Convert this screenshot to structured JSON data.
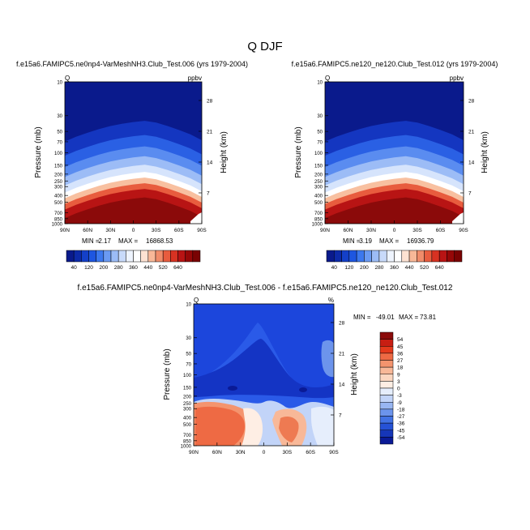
{
  "page_title": "Q DJF",
  "colors": {
    "deep_blue": "#0a1a96",
    "blue": "#1e50e6",
    "light_blue": "#9ab8f0",
    "white": "#ffffff",
    "peach": "#f6c7a8",
    "orange": "#ee7a52",
    "dark_red": "#8b0a0a"
  },
  "chart_data": [
    {
      "type": "heatmap",
      "title": "f.e15a6.FAMIPC5.ne0np4-VarMeshNH3.Club_Test.006 (yrs 1979-2004)",
      "variable_label": "Q",
      "units_label": "ppbv",
      "xlabel": "",
      "ylabel": "Pressure (mb)",
      "y2label": "Height (km)",
      "x_ticks": [
        "90N",
        "60N",
        "30N",
        "0",
        "30S",
        "60S",
        "90S"
      ],
      "y_ticks": [
        "10",
        "30",
        "50",
        "70",
        "100",
        "150",
        "200",
        "250",
        "300",
        "400",
        "500",
        "700",
        "850",
        "1000"
      ],
      "y2_ticks": [
        "28",
        "21",
        "14",
        "7"
      ],
      "ylim": [
        10,
        1000
      ],
      "y_scale": "log",
      "stats": {
        "min_label": "MIN =",
        "min": "2.17",
        "max_label": "MAX =",
        "max": "16868.53"
      },
      "colorbar_levels": [
        "40",
        "120",
        "200",
        "280",
        "360",
        "440",
        "520",
        "640"
      ],
      "colorbar_colors": [
        "#0a1a8c",
        "#0d2aa8",
        "#1440c8",
        "#1e56e0",
        "#3c78ee",
        "#6a9af2",
        "#9cbcf6",
        "#c8dafa",
        "#eef4fe",
        "#ffffff",
        "#fde2d2",
        "#f8b898",
        "#f08c6a",
        "#e85c3e",
        "#d83222",
        "#b81414",
        "#960808",
        "#7a0303"
      ],
      "boundary_lat": [
        90,
        75,
        60,
        45,
        30,
        15,
        0,
        -15,
        -30,
        -45,
        -60,
        -75,
        -90
      ],
      "boundary_mb": [
        480,
        410,
        360,
        320,
        290,
        270,
        255,
        245,
        260,
        290,
        330,
        380,
        460
      ]
    },
    {
      "type": "heatmap",
      "title": "f.e15a6.FAMIPC5.ne120_ne120.Club_Test.012 (yrs 1979-2004)",
      "variable_label": "Q",
      "units_label": "ppbv",
      "xlabel": "",
      "ylabel": "Pressure (mb)",
      "y2label": "Height (km)",
      "x_ticks": [
        "90N",
        "60N",
        "30N",
        "0",
        "30S",
        "60S",
        "90S"
      ],
      "y_ticks": [
        "10",
        "30",
        "50",
        "70",
        "100",
        "150",
        "200",
        "250",
        "300",
        "400",
        "500",
        "700",
        "850",
        "1000"
      ],
      "y2_ticks": [
        "28",
        "21",
        "14",
        "7"
      ],
      "ylim": [
        10,
        1000
      ],
      "y_scale": "log",
      "stats": {
        "min_label": "MIN =",
        "min": "3.19",
        "max_label": "MAX =",
        "max": "16936.79"
      },
      "colorbar_levels": [
        "40",
        "120",
        "200",
        "280",
        "360",
        "440",
        "520",
        "640"
      ],
      "colorbar_colors": [
        "#0a1a8c",
        "#0d2aa8",
        "#1440c8",
        "#1e56e0",
        "#3c78ee",
        "#6a9af2",
        "#9cbcf6",
        "#c8dafa",
        "#eef4fe",
        "#ffffff",
        "#fde2d2",
        "#f8b898",
        "#f08c6a",
        "#e85c3e",
        "#d83222",
        "#b81414",
        "#960808",
        "#7a0303"
      ],
      "boundary_lat": [
        90,
        75,
        60,
        45,
        30,
        15,
        0,
        -15,
        -30,
        -45,
        -60,
        -75,
        -90
      ],
      "boundary_mb": [
        480,
        410,
        360,
        320,
        290,
        270,
        255,
        245,
        260,
        290,
        330,
        380,
        460
      ]
    },
    {
      "type": "heatmap",
      "title": "f.e15a6.FAMIPC5.ne0np4-VarMeshNH3.Club_Test.006 - f.e15a6.FAMIPC5.ne120_ne120.Club_Test.012",
      "variable_label": "Q",
      "units_label": "%",
      "xlabel": "",
      "ylabel": "Pressure (mb)",
      "y2label": "Height (km)",
      "x_ticks": [
        "90N",
        "60N",
        "30N",
        "0",
        "30S",
        "60S",
        "90S"
      ],
      "y_ticks": [
        "10",
        "30",
        "50",
        "70",
        "100",
        "150",
        "200",
        "250",
        "300",
        "400",
        "500",
        "700",
        "850",
        "1000"
      ],
      "y2_ticks": [
        "28",
        "21",
        "14",
        "7"
      ],
      "ylim": [
        10,
        1000
      ],
      "y_scale": "log",
      "stats": {
        "min_label": "MIN =",
        "min": "-49.01",
        "max_label": "MAX =",
        "max": "73.81"
      },
      "colorbar_levels": [
        "54",
        "45",
        "36",
        "27",
        "18",
        "9",
        "3",
        "0",
        "-3",
        "-9",
        "-18",
        "-27",
        "-36",
        "-45",
        "-54"
      ],
      "colorbar_colors": [
        "#8b0a0a",
        "#c81e12",
        "#e43a1c",
        "#ee6a44",
        "#f4946e",
        "#f8b898",
        "#fbd6c0",
        "#feeee4",
        "#e6eefc",
        "#c2d4f8",
        "#98b6f2",
        "#6c94ec",
        "#4272e4",
        "#2652d6",
        "#1636b8",
        "#0a1a96"
      ]
    }
  ]
}
